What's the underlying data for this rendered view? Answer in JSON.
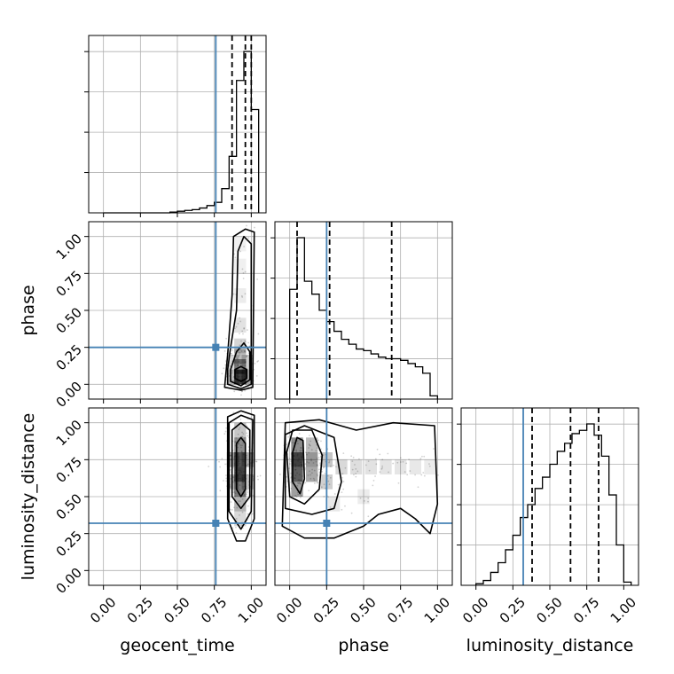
{
  "chart_data": {
    "type": "corner",
    "parameters": [
      "geocent_time",
      "phase",
      "luminosity_distance"
    ],
    "axis_labels": {
      "bottom": [
        "geocent_time",
        "phase",
        "luminosity_distance"
      ],
      "left": [
        "phase",
        "luminosity_distance"
      ]
    },
    "tick_labels": [
      "0.00",
      "0.25",
      "0.50",
      "0.75",
      "1.00"
    ],
    "ticks": [
      0,
      0.25,
      0.5,
      0.75,
      1.0
    ],
    "xlim": [
      -0.1,
      1.1
    ],
    "ylim": [
      -0.1,
      1.1
    ],
    "grid": true,
    "colors": {
      "truth": "#4682b4",
      "hist": "#000000",
      "quantile": "#000000",
      "density": "#000000"
    },
    "truths": {
      "geocent_time": 0.76,
      "phase": 0.25,
      "luminosity_distance": 0.32
    },
    "histograms": [
      {
        "parameter": "geocent_time",
        "bin_edges": [
          0.0,
          0.05,
          0.1,
          0.15,
          0.2,
          0.25,
          0.3,
          0.35,
          0.4,
          0.45,
          0.5,
          0.55,
          0.6,
          0.65,
          0.7,
          0.75,
          0.8,
          0.85,
          0.9,
          0.95,
          1.0,
          1.05
        ],
        "counts": [
          0,
          0,
          0,
          0,
          0,
          0,
          0,
          0,
          0,
          0.005,
          0.01,
          0.015,
          0.02,
          0.03,
          0.045,
          0.065,
          0.15,
          0.35,
          0.82,
          1.0,
          0.64
        ],
        "quantiles": [
          0.87,
          0.96,
          1.0
        ]
      },
      {
        "parameter": "phase",
        "bin_edges": [
          0.0,
          0.05,
          0.1,
          0.15,
          0.2,
          0.25,
          0.3,
          0.35,
          0.4,
          0.45,
          0.5,
          0.55,
          0.6,
          0.65,
          0.7,
          0.75,
          0.8,
          0.85,
          0.9,
          0.95,
          1.0
        ],
        "counts": [
          0.68,
          1.0,
          0.73,
          0.65,
          0.55,
          0.48,
          0.42,
          0.37,
          0.34,
          0.31,
          0.3,
          0.28,
          0.26,
          0.25,
          0.25,
          0.24,
          0.22,
          0.2,
          0.16,
          0.02
        ],
        "quantiles": [
          0.05,
          0.27,
          0.69
        ]
      },
      {
        "parameter": "luminosity_distance",
        "bin_edges": [
          0.0,
          0.05,
          0.1,
          0.15,
          0.2,
          0.25,
          0.3,
          0.35,
          0.4,
          0.45,
          0.5,
          0.55,
          0.6,
          0.65,
          0.7,
          0.75,
          0.8,
          0.85,
          0.9,
          0.95,
          1.0,
          1.05
        ],
        "counts": [
          0.01,
          0.03,
          0.08,
          0.14,
          0.22,
          0.31,
          0.42,
          0.5,
          0.6,
          0.67,
          0.75,
          0.83,
          0.88,
          0.94,
          0.96,
          1.0,
          0.93,
          0.8,
          0.56,
          0.25,
          0.02
        ],
        "quantiles": [
          0.38,
          0.64,
          0.83
        ]
      }
    ],
    "panels_2d": [
      {
        "x": "geocent_time",
        "y": "phase",
        "density_cells": [
          {
            "x": 0.925,
            "y": 0.05,
            "d": 1.0
          },
          {
            "x": 0.925,
            "y": 0.12,
            "d": 0.6
          },
          {
            "x": 0.925,
            "y": 0.19,
            "d": 0.35
          },
          {
            "x": 0.925,
            "y": 0.26,
            "d": 0.22
          },
          {
            "x": 0.925,
            "y": 0.4,
            "d": 0.15
          },
          {
            "x": 0.925,
            "y": 0.6,
            "d": 0.1
          },
          {
            "x": 0.925,
            "y": 0.8,
            "d": 0.08
          },
          {
            "x": 0.925,
            "y": 0.95,
            "d": 0.07
          },
          {
            "x": 0.875,
            "y": 0.05,
            "d": 0.35
          },
          {
            "x": 0.875,
            "y": 0.15,
            "d": 0.2
          },
          {
            "x": 0.975,
            "y": 0.05,
            "d": 0.45
          },
          {
            "x": 0.975,
            "y": 0.15,
            "d": 0.25
          }
        ],
        "contours": [
          [
            [
              0.89,
              0.04
            ],
            [
              0.93,
              0.02
            ],
            [
              0.97,
              0.04
            ],
            [
              0.97,
              0.1
            ],
            [
              0.93,
              0.12
            ],
            [
              0.89,
              0.1
            ]
          ],
          [
            [
              0.86,
              0.02
            ],
            [
              0.93,
              -0.01
            ],
            [
              0.99,
              0.03
            ],
            [
              0.99,
              0.22
            ],
            [
              0.95,
              0.28
            ],
            [
              0.9,
              0.22
            ],
            [
              0.86,
              0.1
            ]
          ],
          [
            [
              0.84,
              0.0
            ],
            [
              0.93,
              -0.03
            ],
            [
              1.0,
              0.0
            ],
            [
              1.0,
              0.95
            ],
            [
              0.95,
              1.0
            ],
            [
              0.91,
              0.9
            ],
            [
              0.9,
              0.5
            ],
            [
              0.86,
              0.25
            ],
            [
              0.84,
              0.1
            ]
          ],
          [
            [
              0.82,
              -0.02
            ],
            [
              0.93,
              -0.04
            ],
            [
              1.01,
              -0.02
            ],
            [
              1.02,
              1.03
            ],
            [
              0.96,
              1.05
            ],
            [
              0.88,
              1.0
            ],
            [
              0.87,
              0.6
            ],
            [
              0.84,
              0.2
            ]
          ]
        ]
      },
      {
        "x": "geocent_time",
        "y": "luminosity_distance",
        "density_cells": [
          {
            "x": 0.925,
            "y": 0.65,
            "d": 1.0
          },
          {
            "x": 0.925,
            "y": 0.75,
            "d": 0.9
          },
          {
            "x": 0.925,
            "y": 0.55,
            "d": 0.7
          },
          {
            "x": 0.925,
            "y": 0.85,
            "d": 0.6
          },
          {
            "x": 0.925,
            "y": 0.45,
            "d": 0.4
          },
          {
            "x": 0.925,
            "y": 0.95,
            "d": 0.3
          },
          {
            "x": 0.925,
            "y": 0.35,
            "d": 0.2
          },
          {
            "x": 0.875,
            "y": 0.75,
            "d": 0.45
          },
          {
            "x": 0.875,
            "y": 0.6,
            "d": 0.35
          },
          {
            "x": 0.975,
            "y": 0.75,
            "d": 0.4
          },
          {
            "x": 0.975,
            "y": 0.6,
            "d": 0.3
          }
        ],
        "contours": [
          [
            [
              0.9,
              0.55
            ],
            [
              0.93,
              0.5
            ],
            [
              0.96,
              0.55
            ],
            [
              0.96,
              0.86
            ],
            [
              0.93,
              0.9
            ],
            [
              0.9,
              0.86
            ]
          ],
          [
            [
              0.87,
              0.5
            ],
            [
              0.93,
              0.42
            ],
            [
              0.99,
              0.5
            ],
            [
              0.99,
              0.95
            ],
            [
              0.93,
              1.0
            ],
            [
              0.87,
              0.95
            ]
          ],
          [
            [
              0.85,
              0.4
            ],
            [
              0.93,
              0.28
            ],
            [
              1.0,
              0.4
            ],
            [
              1.01,
              1.02
            ],
            [
              0.93,
              1.05
            ],
            [
              0.85,
              1.0
            ]
          ],
          [
            [
              0.84,
              0.35
            ],
            [
              0.9,
              0.2
            ],
            [
              0.96,
              0.2
            ],
            [
              1.02,
              0.35
            ],
            [
              1.02,
              1.05
            ],
            [
              0.93,
              1.08
            ],
            [
              0.84,
              1.04
            ]
          ]
        ]
      },
      {
        "x": "phase",
        "y": "luminosity_distance",
        "density_cells": [
          {
            "x": 0.05,
            "y": 0.75,
            "d": 1.0
          },
          {
            "x": 0.05,
            "y": 0.65,
            "d": 0.85
          },
          {
            "x": 0.05,
            "y": 0.85,
            "d": 0.6
          },
          {
            "x": 0.05,
            "y": 0.55,
            "d": 0.5
          },
          {
            "x": 0.15,
            "y": 0.75,
            "d": 0.55
          },
          {
            "x": 0.15,
            "y": 0.65,
            "d": 0.45
          },
          {
            "x": 0.15,
            "y": 0.85,
            "d": 0.35
          },
          {
            "x": 0.25,
            "y": 0.75,
            "d": 0.3
          },
          {
            "x": 0.25,
            "y": 0.6,
            "d": 0.25
          },
          {
            "x": 0.35,
            "y": 0.7,
            "d": 0.2
          },
          {
            "x": 0.45,
            "y": 0.7,
            "d": 0.17
          },
          {
            "x": 0.55,
            "y": 0.7,
            "d": 0.15
          },
          {
            "x": 0.65,
            "y": 0.7,
            "d": 0.14
          },
          {
            "x": 0.75,
            "y": 0.7,
            "d": 0.13
          },
          {
            "x": 0.85,
            "y": 0.7,
            "d": 0.12
          },
          {
            "x": 0.95,
            "y": 0.7,
            "d": 0.1
          },
          {
            "x": 0.3,
            "y": 0.45,
            "d": 0.12
          },
          {
            "x": 0.5,
            "y": 0.5,
            "d": 0.1
          }
        ],
        "contours": [
          [
            [
              0.02,
              0.6
            ],
            [
              0.07,
              0.52
            ],
            [
              0.1,
              0.62
            ],
            [
              0.09,
              0.88
            ],
            [
              0.05,
              0.9
            ],
            [
              0.02,
              0.8
            ]
          ],
          [
            [
              0.0,
              0.5
            ],
            [
              0.1,
              0.45
            ],
            [
              0.2,
              0.55
            ],
            [
              0.22,
              0.78
            ],
            [
              0.15,
              0.95
            ],
            [
              0.02,
              0.95
            ],
            [
              -0.02,
              0.8
            ]
          ],
          [
            [
              -0.03,
              0.42
            ],
            [
              0.15,
              0.38
            ],
            [
              0.3,
              0.42
            ],
            [
              0.35,
              0.6
            ],
            [
              0.3,
              0.9
            ],
            [
              0.1,
              0.98
            ],
            [
              -0.03,
              0.92
            ]
          ],
          [
            [
              -0.05,
              0.3
            ],
            [
              0.1,
              0.22
            ],
            [
              0.3,
              0.22
            ],
            [
              0.5,
              0.3
            ],
            [
              0.6,
              0.38
            ],
            [
              0.75,
              0.42
            ],
            [
              0.85,
              0.35
            ],
            [
              0.95,
              0.25
            ],
            [
              1.0,
              0.45
            ],
            [
              0.98,
              0.98
            ],
            [
              0.7,
              1.0
            ],
            [
              0.45,
              0.95
            ],
            [
              0.2,
              1.02
            ],
            [
              -0.03,
              1.0
            ]
          ]
        ]
      }
    ]
  }
}
